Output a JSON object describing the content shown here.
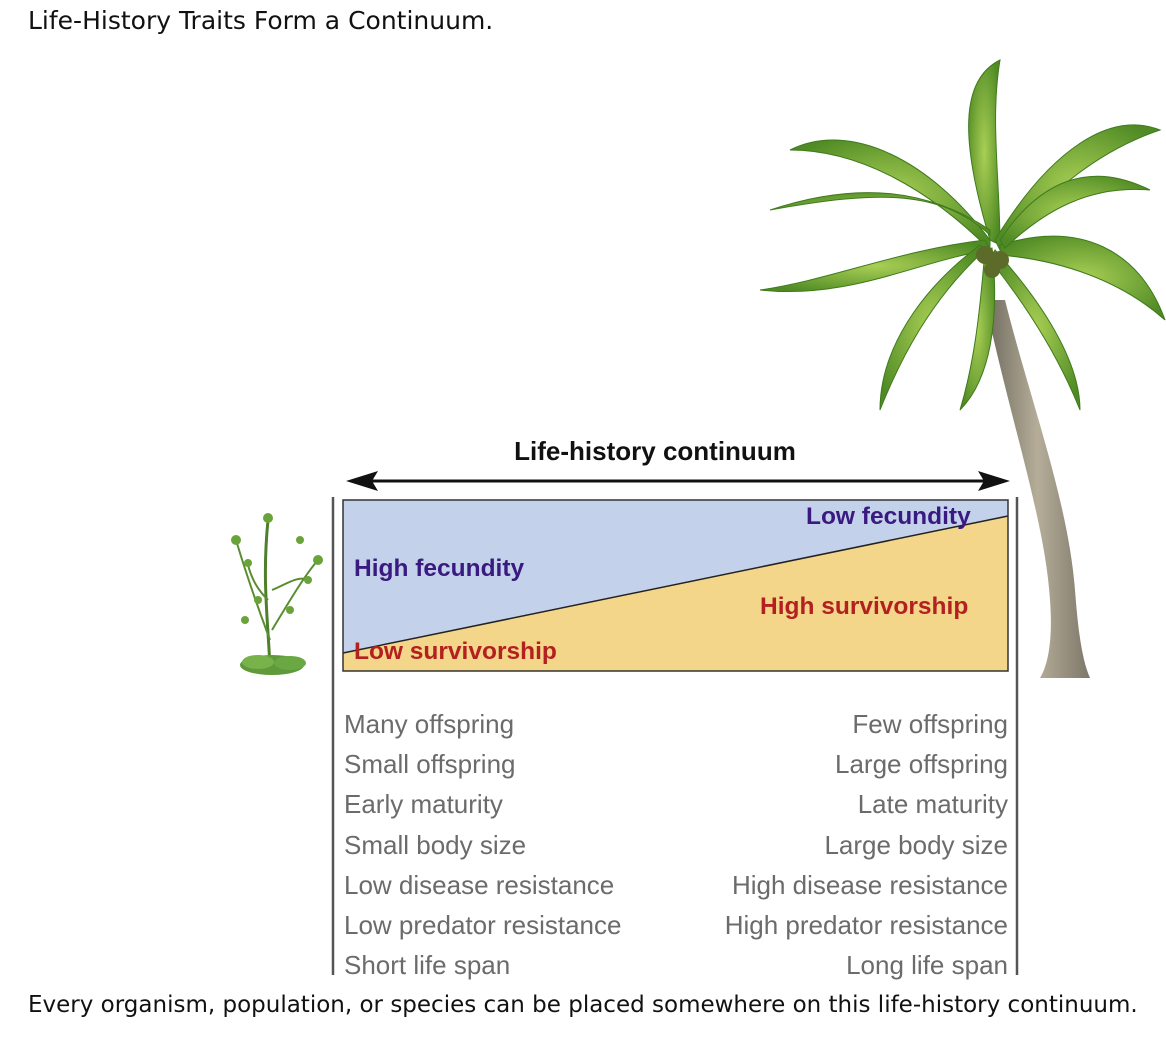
{
  "title": "Life-History Traits Form a Continuum.",
  "caption": "Every organism, population, or species can be placed somewhere on this life-history continuum.",
  "continuum_label": "Life-history continuum",
  "bands": {
    "fecundity_high": "High fecundity",
    "fecundity_low": "Low fecundity",
    "survivorship_low": "Low survivorship",
    "survivorship_high": "High survivorship"
  },
  "traits_left": [
    "Many offspring",
    "Small offspring",
    "Early maturity",
    "Small body size",
    "Low disease resistance",
    "Low predator resistance",
    "Short life span"
  ],
  "traits_right": [
    "Few offspring",
    "Large offspring",
    "Late maturity",
    "Large body size",
    "High disease resistance",
    "High predator resistance",
    "Long life span"
  ],
  "illustrations": {
    "left": "small-weed-plant",
    "right": "coconut-palm-tree"
  },
  "colors": {
    "fecundity_fill": "#c3d2ea",
    "survivorship_fill": "#f3d68a",
    "purple_text": "#3a1a80",
    "red_text": "#b42020",
    "trait_text": "#6b6b6b"
  }
}
